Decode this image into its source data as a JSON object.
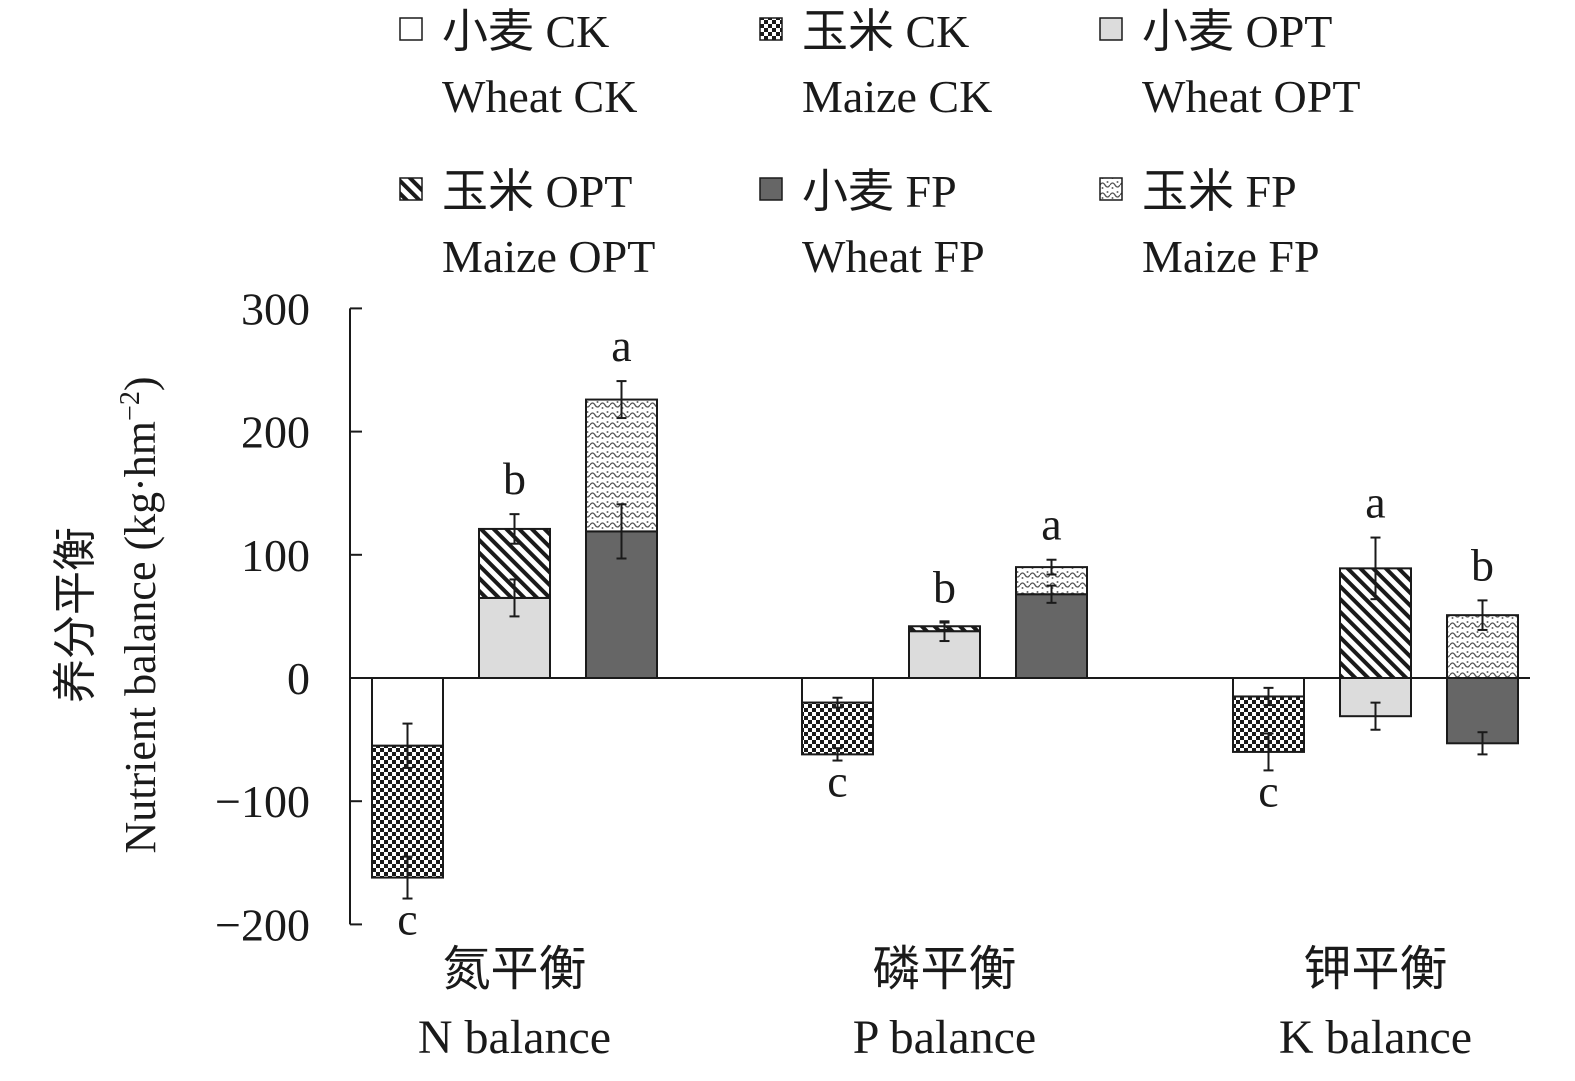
{
  "chart_data": {
    "type": "bar",
    "stacked": true,
    "ylabel_cn": "养分平衡",
    "ylabel_en": "Nutrient balance (kg·hm",
    "ylabel_sup": "−2",
    "ylabel_close": ")",
    "ylim": [
      -200,
      300
    ],
    "yticks": [
      300,
      200,
      100,
      0,
      -100,
      -200
    ],
    "ytick_labels": [
      "300",
      "200",
      "100",
      "0",
      "−100",
      "−200"
    ],
    "groups": [
      {
        "label_cn": "氮平衡",
        "label_en": "N balance"
      },
      {
        "label_cn": "磷平衡",
        "label_en": "P balance"
      },
      {
        "label_cn": "钾平衡",
        "label_en": "K balance"
      }
    ],
    "treatments": [
      "CK",
      "OPT",
      "FP"
    ],
    "legend": [
      {
        "key": "wheat_ck",
        "cn": "小麦 CK",
        "en": "Wheat CK",
        "pattern": "white"
      },
      {
        "key": "maize_ck",
        "cn": "玉米 CK",
        "en": "Maize CK",
        "pattern": "checker"
      },
      {
        "key": "wheat_opt",
        "cn": "小麦 OPT",
        "en": "Wheat OPT",
        "pattern": "lightgray"
      },
      {
        "key": "maize_opt",
        "cn": "玉米 OPT",
        "en": "Maize OPT",
        "pattern": "diagonal"
      },
      {
        "key": "wheat_fp",
        "cn": "小麦 FP",
        "en": "Wheat FP",
        "pattern": "darkgray"
      },
      {
        "key": "maize_fp",
        "cn": "玉米 FP",
        "en": "Maize FP",
        "pattern": "dotted"
      }
    ],
    "legend_placement": "top",
    "bars": [
      {
        "group": 0,
        "treatment": "CK",
        "wheat": -55,
        "maize": -107,
        "wheat_err": 18,
        "total_err": 17,
        "letter": "c"
      },
      {
        "group": 0,
        "treatment": "OPT",
        "wheat": 65,
        "maize": 56,
        "wheat_err": 15,
        "total_err": 12,
        "letter": "b"
      },
      {
        "group": 0,
        "treatment": "FP",
        "wheat": 119,
        "maize": 107,
        "wheat_err": 22,
        "total_err": 15,
        "letter": "a"
      },
      {
        "group": 1,
        "treatment": "CK",
        "wheat": -20,
        "maize": -42,
        "wheat_err": 4,
        "total_err": 5,
        "letter": "c"
      },
      {
        "group": 1,
        "treatment": "OPT",
        "wheat": 38,
        "maize": 4,
        "wheat_err": 8,
        "total_err": 3,
        "letter": "b"
      },
      {
        "group": 1,
        "treatment": "FP",
        "wheat": 68,
        "maize": 22,
        "wheat_err": 7,
        "total_err": 6,
        "letter": "a"
      },
      {
        "group": 2,
        "treatment": "CK",
        "wheat": -15,
        "maize": -45,
        "wheat_err": 7,
        "total_err": 15,
        "letter": "c"
      },
      {
        "group": 2,
        "treatment": "OPT",
        "wheat": -31,
        "maize": 89,
        "wheat_err": 11,
        "total_err": 25,
        "letter": "a"
      },
      {
        "group": 2,
        "treatment": "FP",
        "wheat": -53,
        "maize": 51,
        "wheat_err": 9,
        "total_err": 12,
        "letter": "b"
      }
    ]
  }
}
